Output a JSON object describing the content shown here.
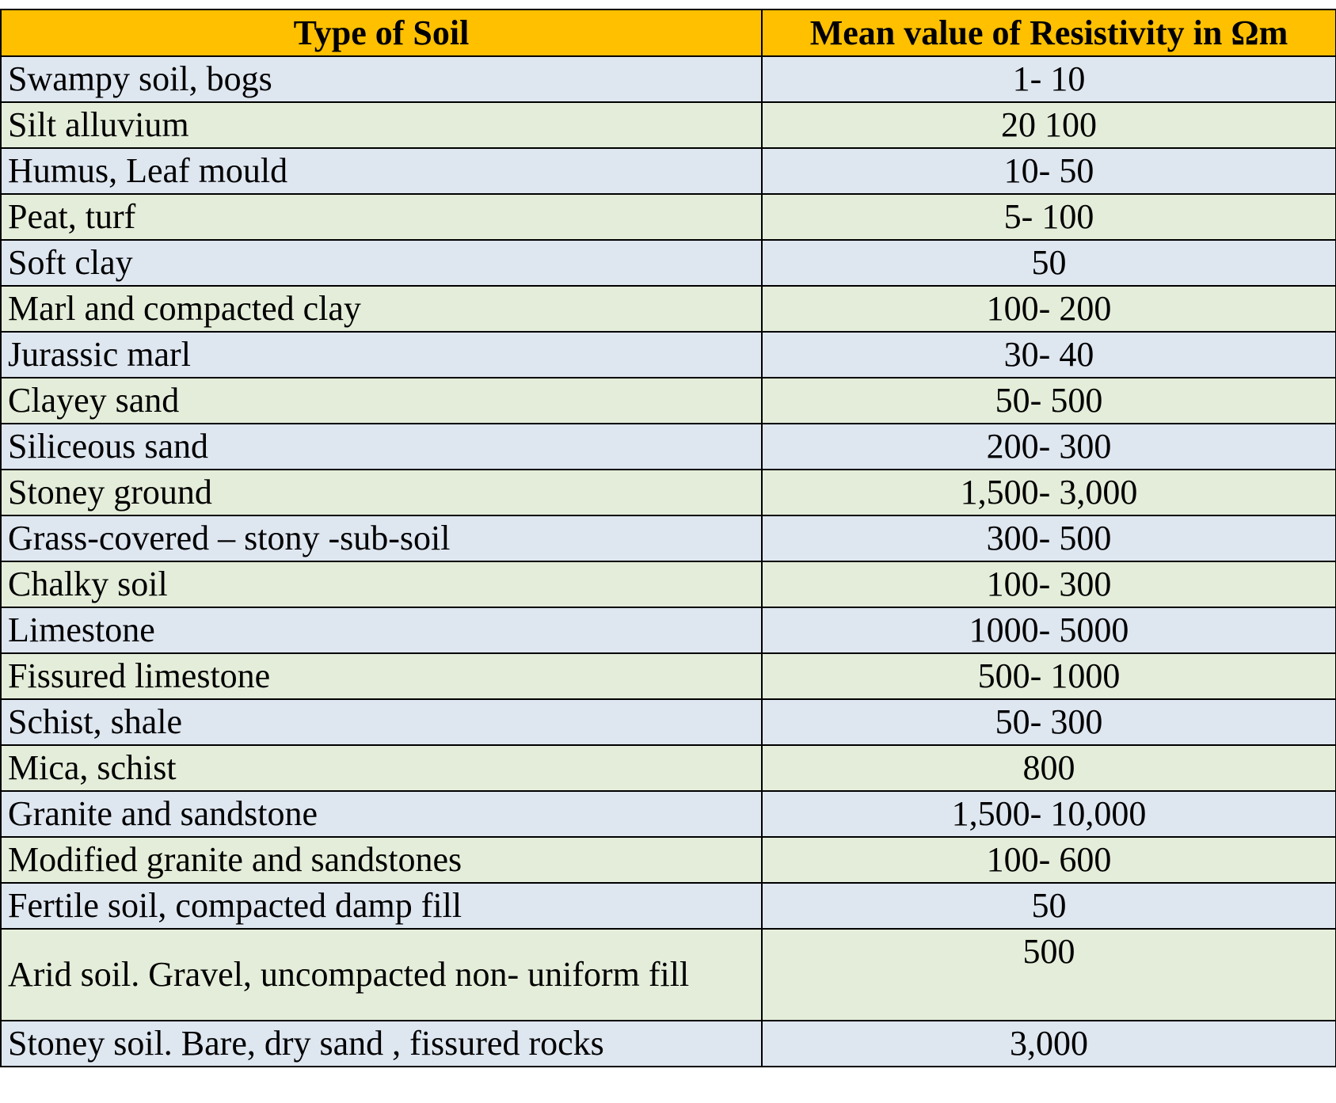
{
  "table": {
    "headers": [
      "Type of Soil",
      "Mean value of Resistivity in Ωm"
    ],
    "rows": [
      {
        "soil": "Swampy soil, bogs",
        "value": "1- 10"
      },
      {
        "soil": "Silt alluvium",
        "value": "20 100"
      },
      {
        "soil": "Humus, Leaf mould",
        "value": "10- 50"
      },
      {
        "soil": "Peat, turf",
        "value": "5- 100"
      },
      {
        "soil": "Soft clay",
        "value": "50"
      },
      {
        "soil": "Marl and compacted clay",
        "value": "100- 200"
      },
      {
        "soil": "Jurassic marl",
        "value": "30- 40"
      },
      {
        "soil": "Clayey sand",
        "value": "50- 500"
      },
      {
        "soil": "Siliceous sand",
        "value": "200- 300"
      },
      {
        "soil": "Stoney ground",
        "value": "1,500- 3,000"
      },
      {
        "soil": "Grass-covered – stony -sub-soil",
        "value": "300- 500"
      },
      {
        "soil": "Chalky soil",
        "value": "100- 300"
      },
      {
        "soil": "Limestone",
        "value": "1000- 5000"
      },
      {
        "soil": "Fissured limestone",
        "value": "500- 1000"
      },
      {
        "soil": "Schist, shale",
        "value": "50- 300"
      },
      {
        "soil": "Mica, schist",
        "value": "800"
      },
      {
        "soil": "Granite and sandstone",
        "value": "1,500- 10,000"
      },
      {
        "soil": "Modified granite and sandstones",
        "value": "100- 600"
      },
      {
        "soil": "Fertile soil, compacted damp fill",
        "value": "50"
      },
      {
        "soil": "Arid soil. Gravel, uncompacted non- uniform fill",
        "value": "500"
      },
      {
        "soil": "Stoney soil. Bare, dry sand , fissured rocks",
        "value": "3,000"
      }
    ]
  },
  "colors": {
    "header_bg": "#FFC000",
    "row_blue": "#DEE6F0",
    "row_green": "#E4EDD9",
    "border": "#000000"
  }
}
